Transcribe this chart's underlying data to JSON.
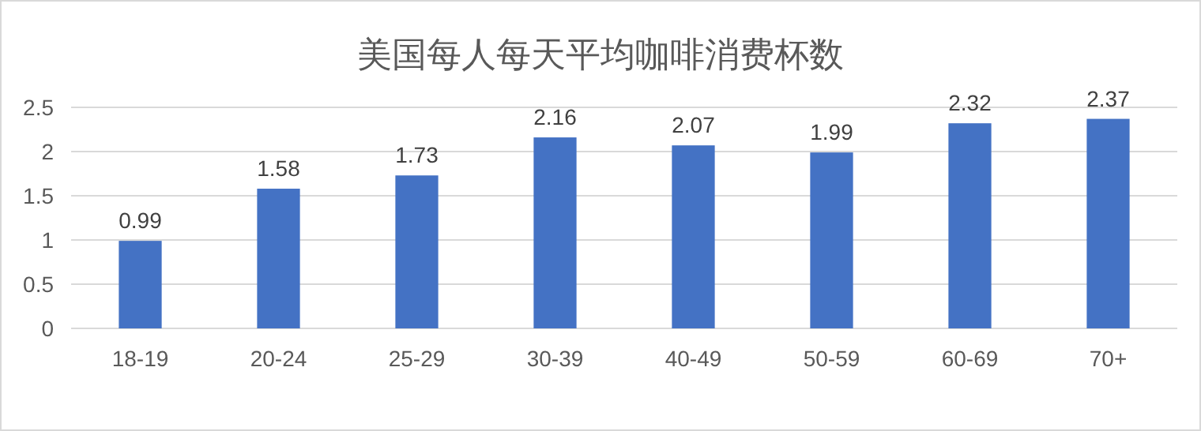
{
  "chart_data": {
    "type": "bar",
    "title": "美国每人每天平均咖啡消费杯数",
    "categories": [
      "18-19",
      "20-24",
      "25-29",
      "30-39",
      "40-49",
      "50-59",
      "60-69",
      "70+"
    ],
    "values": [
      0.99,
      1.58,
      1.73,
      2.16,
      2.07,
      1.99,
      2.32,
      2.37
    ],
    "color": "#4472c4",
    "ylim": [
      0,
      2.5
    ],
    "yticks": [
      0,
      0.5,
      1,
      1.5,
      2,
      2.5
    ],
    "grid": "y",
    "data_labels": true
  }
}
